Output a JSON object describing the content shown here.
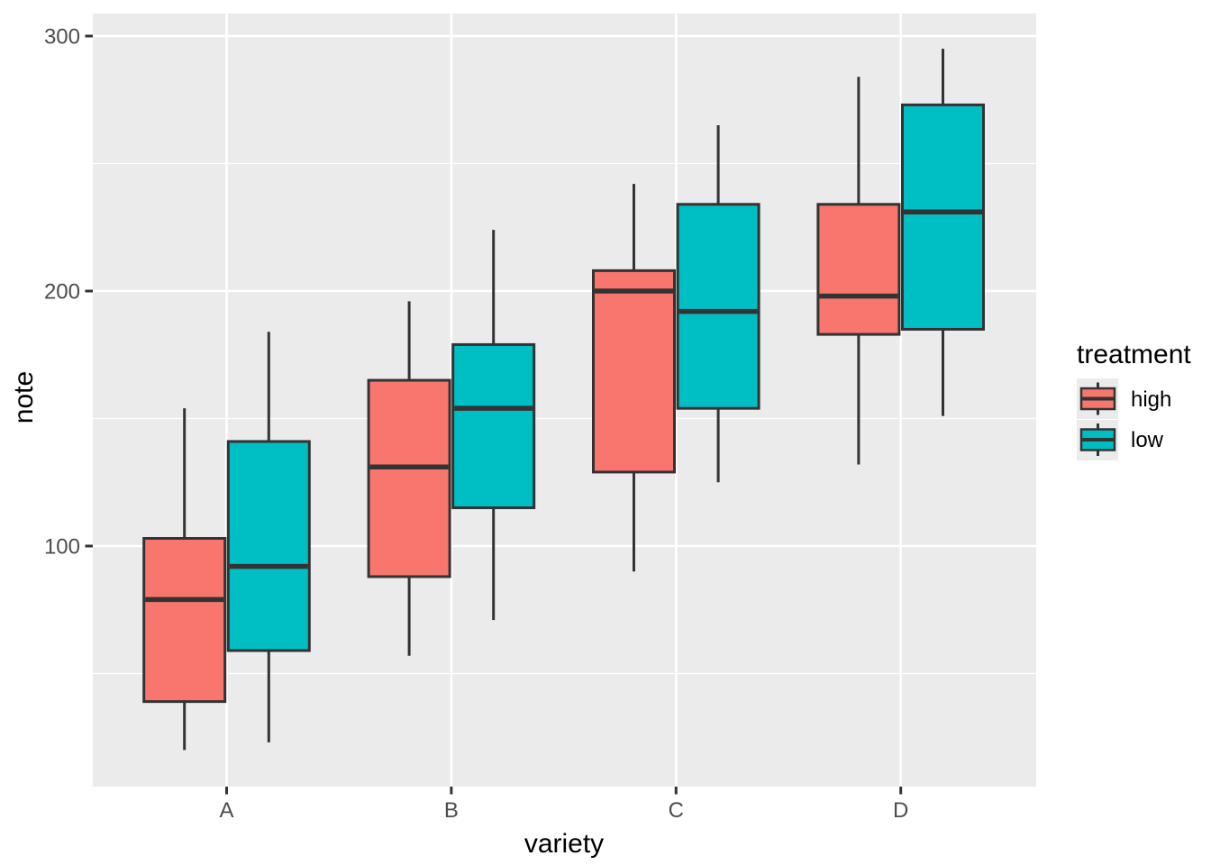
{
  "chart_data": {
    "type": "boxplot",
    "title": "",
    "xlabel": "variety",
    "ylabel": "note",
    "categories": [
      "A",
      "B",
      "C",
      "D"
    ],
    "y_ticks": [
      100,
      200,
      300
    ],
    "y_tick_labels": [
      "100",
      "200",
      "300"
    ],
    "y_minor_ticks": [
      50,
      150,
      250
    ],
    "ylim": [
      5,
      309
    ],
    "grid": true,
    "legend": {
      "title": "treatment",
      "position": "right",
      "entries": [
        {
          "label": "high",
          "color": "#F8766D"
        },
        {
          "label": "low",
          "color": "#00BFC4"
        }
      ]
    },
    "series": [
      {
        "name": "high",
        "color": "#F8766D",
        "boxes": [
          {
            "category": "A",
            "whisker_low": 20,
            "q1": 39,
            "median": 79,
            "q3": 103,
            "whisker_high": 154
          },
          {
            "category": "B",
            "whisker_low": 57,
            "q1": 88,
            "median": 131,
            "q3": 165,
            "whisker_high": 196
          },
          {
            "category": "C",
            "whisker_low": 90,
            "q1": 129,
            "median": 200,
            "q3": 208,
            "whisker_high": 242
          },
          {
            "category": "D",
            "whisker_low": 132,
            "q1": 183,
            "median": 198,
            "q3": 234,
            "whisker_high": 284
          }
        ]
      },
      {
        "name": "low",
        "color": "#00BFC4",
        "boxes": [
          {
            "category": "A",
            "whisker_low": 23,
            "q1": 59,
            "median": 92,
            "q3": 141,
            "whisker_high": 184
          },
          {
            "category": "B",
            "whisker_low": 71,
            "q1": 115,
            "median": 154,
            "q3": 179,
            "whisker_high": 224
          },
          {
            "category": "C",
            "whisker_low": 125,
            "q1": 154,
            "median": 192,
            "q3": 234,
            "whisker_high": 265
          },
          {
            "category": "D",
            "whisker_low": 151,
            "q1": 185,
            "median": 231,
            "q3": 273,
            "whisker_high": 295
          }
        ]
      }
    ],
    "style": {
      "panel_bg": "#EBEBEB",
      "grid_color": "#FFFFFF",
      "box_outline": "#333333",
      "tick_mark_color": "#333333",
      "tick_label_color": "#4D4D4D",
      "axis_title_color": "#000000",
      "legend_key_bg": "#EBEBEB"
    }
  }
}
